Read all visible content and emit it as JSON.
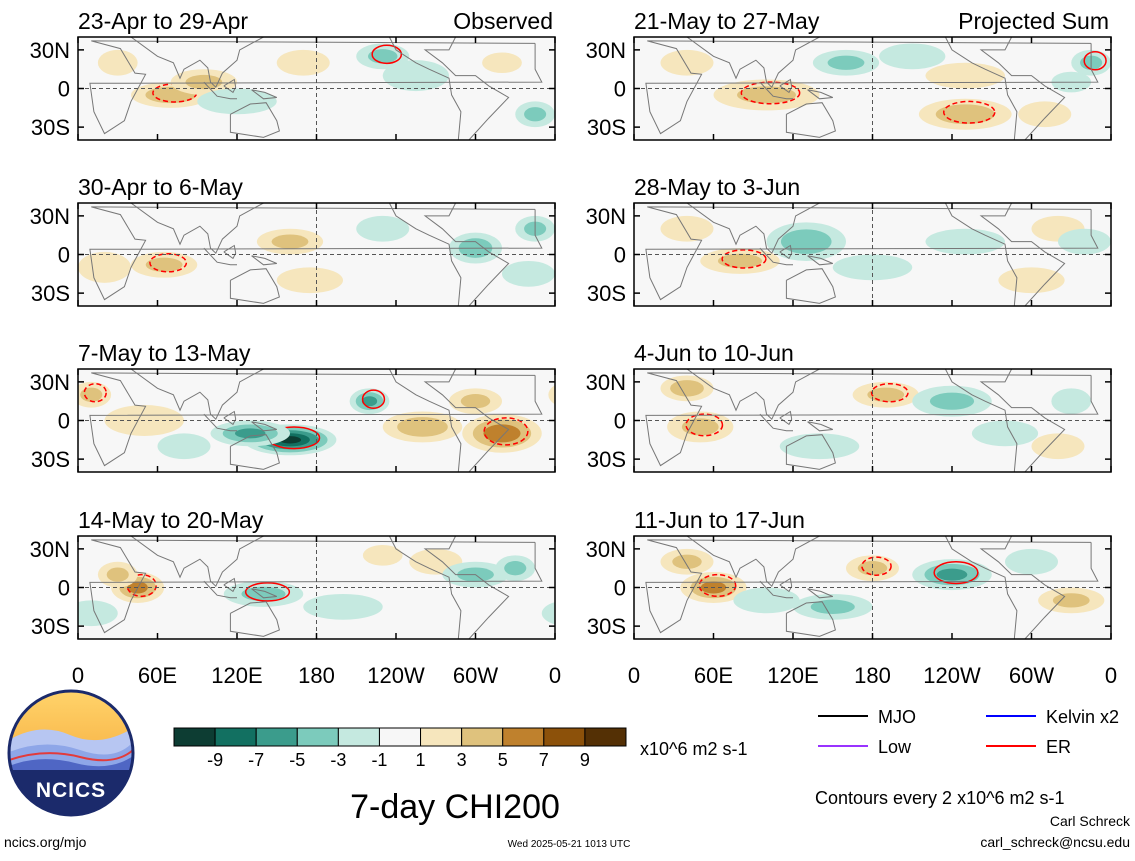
{
  "chart_data": {
    "type": "heatmap",
    "title": "7-day CHI200",
    "variable": "CHI200",
    "units": "x10^6 m2 s-1",
    "column_labels": [
      "Observed",
      "Projected Sum"
    ],
    "y_tick_labels": [
      "30N",
      "0",
      "30S"
    ],
    "ylim": [
      -40,
      40
    ],
    "x_tick_labels": [
      "0",
      "60E",
      "120E",
      "180",
      "120W",
      "60W",
      "0"
    ],
    "xlim": [
      0,
      360
    ],
    "colorbar": {
      "tick_labels": [
        "-9",
        "-7",
        "-5",
        "-3",
        "-1",
        "1",
        "3",
        "5",
        "7",
        "9"
      ],
      "colors": [
        "#0d3d33",
        "#127061",
        "#3b9c8c",
        "#7ccbbc",
        "#c5e9e0",
        "#f7f7f7",
        "#f6e6bd",
        "#dfc27d",
        "#bf812d",
        "#8c510a",
        "#543005"
      ]
    },
    "contour_legend": [
      {
        "label": "MJO",
        "color": "#000000"
      },
      {
        "label": "Kelvin x2",
        "color": "#0000ff"
      },
      {
        "label": "Low",
        "color": "#9933ff"
      },
      {
        "label": "ER",
        "color": "#ff0000"
      }
    ],
    "contour_note": "Contours every 2 x10^6 m2 s-1",
    "panels": [
      {
        "period": "23-Apr to 29-Apr",
        "column": "Observed",
        "blobs": [
          [
            70,
            -5,
            30,
            10,
            4
          ],
          [
            95,
            5,
            25,
            10,
            3
          ],
          [
            30,
            20,
            15,
            10,
            2
          ],
          [
            170,
            20,
            20,
            10,
            2
          ],
          [
            230,
            25,
            20,
            10,
            -3
          ],
          [
            255,
            10,
            25,
            12,
            -2
          ],
          [
            120,
            -10,
            30,
            10,
            -2
          ],
          [
            345,
            -20,
            15,
            10,
            -3
          ],
          [
            320,
            20,
            15,
            8,
            2
          ]
        ]
      },
      {
        "period": "30-Apr to 6-May",
        "column": "Observed",
        "blobs": [
          [
            65,
            -8,
            25,
            10,
            3
          ],
          [
            160,
            10,
            25,
            10,
            3
          ],
          [
            175,
            -20,
            25,
            10,
            2
          ],
          [
            300,
            5,
            20,
            12,
            -4
          ],
          [
            340,
            -15,
            20,
            10,
            -2
          ],
          [
            20,
            -10,
            20,
            12,
            2
          ],
          [
            230,
            20,
            20,
            10,
            -2
          ],
          [
            345,
            20,
            15,
            10,
            -3
          ]
        ]
      },
      {
        "period": "7-May to 13-May",
        "column": "Observed",
        "blobs": [
          [
            160,
            -15,
            35,
            12,
            -9
          ],
          [
            130,
            -10,
            30,
            10,
            -5
          ],
          [
            220,
            15,
            15,
            10,
            -5
          ],
          [
            260,
            -5,
            30,
            12,
            4
          ],
          [
            320,
            -10,
            30,
            15,
            6
          ],
          [
            300,
            15,
            20,
            10,
            3
          ],
          [
            10,
            20,
            15,
            10,
            3
          ],
          [
            50,
            0,
            30,
            12,
            2
          ],
          [
            80,
            -20,
            20,
            10,
            -2
          ]
        ]
      },
      {
        "period": "14-May to 20-May",
        "column": "Observed",
        "blobs": [
          [
            45,
            0,
            20,
            12,
            5
          ],
          [
            30,
            10,
            15,
            10,
            3
          ],
          [
            270,
            20,
            20,
            10,
            2
          ],
          [
            300,
            10,
            25,
            10,
            -3
          ],
          [
            140,
            -5,
            30,
            10,
            -3
          ],
          [
            200,
            -15,
            30,
            10,
            -2
          ],
          [
            10,
            -20,
            20,
            10,
            -2
          ],
          [
            330,
            15,
            15,
            10,
            -3
          ],
          [
            230,
            25,
            15,
            8,
            2
          ]
        ]
      },
      {
        "period": "21-May to 27-May",
        "column": "Projected Sum",
        "blobs": [
          [
            100,
            -5,
            40,
            12,
            3
          ],
          [
            160,
            20,
            25,
            10,
            -3
          ],
          [
            210,
            25,
            25,
            10,
            -2
          ],
          [
            250,
            10,
            30,
            10,
            2
          ],
          [
            250,
            -20,
            35,
            12,
            4
          ],
          [
            310,
            -20,
            20,
            10,
            2
          ],
          [
            345,
            20,
            15,
            10,
            -3
          ],
          [
            40,
            20,
            20,
            10,
            2
          ],
          [
            330,
            5,
            15,
            8,
            -2
          ]
        ]
      },
      {
        "period": "28-May to 3-Jun",
        "column": "Projected Sum",
        "blobs": [
          [
            80,
            -5,
            30,
            10,
            3
          ],
          [
            130,
            10,
            30,
            15,
            -4
          ],
          [
            180,
            -10,
            30,
            10,
            -2
          ],
          [
            250,
            10,
            30,
            10,
            -2
          ],
          [
            320,
            20,
            20,
            10,
            2
          ],
          [
            40,
            20,
            20,
            10,
            2
          ],
          [
            300,
            -20,
            25,
            10,
            2
          ],
          [
            340,
            10,
            20,
            10,
            -2
          ]
        ]
      },
      {
        "period": "4-Jun to 10-Jun",
        "column": "Projected Sum",
        "blobs": [
          [
            50,
            -5,
            25,
            12,
            3
          ],
          [
            40,
            25,
            20,
            10,
            4
          ],
          [
            190,
            20,
            25,
            10,
            3
          ],
          [
            240,
            15,
            30,
            12,
            -3
          ],
          [
            280,
            -10,
            25,
            10,
            -2
          ],
          [
            140,
            -20,
            30,
            10,
            -2
          ],
          [
            320,
            -20,
            20,
            10,
            2
          ],
          [
            330,
            15,
            15,
            10,
            -2
          ]
        ]
      },
      {
        "period": "11-Jun to 17-Jun",
        "column": "Projected Sum",
        "blobs": [
          [
            60,
            0,
            25,
            12,
            5
          ],
          [
            40,
            20,
            20,
            10,
            3
          ],
          [
            240,
            10,
            30,
            12,
            -5
          ],
          [
            150,
            -15,
            30,
            10,
            -3
          ],
          [
            180,
            15,
            20,
            10,
            3
          ],
          [
            330,
            -10,
            25,
            10,
            3
          ],
          [
            300,
            20,
            20,
            10,
            -2
          ],
          [
            100,
            -10,
            25,
            10,
            -2
          ]
        ]
      }
    ]
  },
  "branding": {
    "logo_text": "NCICS",
    "url_text": "ncics.org/mjo",
    "timestamp": "Wed 2025-05-21 1013 UTC",
    "author": "Carl Schreck",
    "email": "carl_schreck@ncsu.edu"
  },
  "colors": {
    "logo_sky": "#f6b73c",
    "logo_mountain_light": "#8ea6e8",
    "logo_mountain_dark": "#2a3b8f",
    "logo_ring": "#1b2a6b"
  }
}
